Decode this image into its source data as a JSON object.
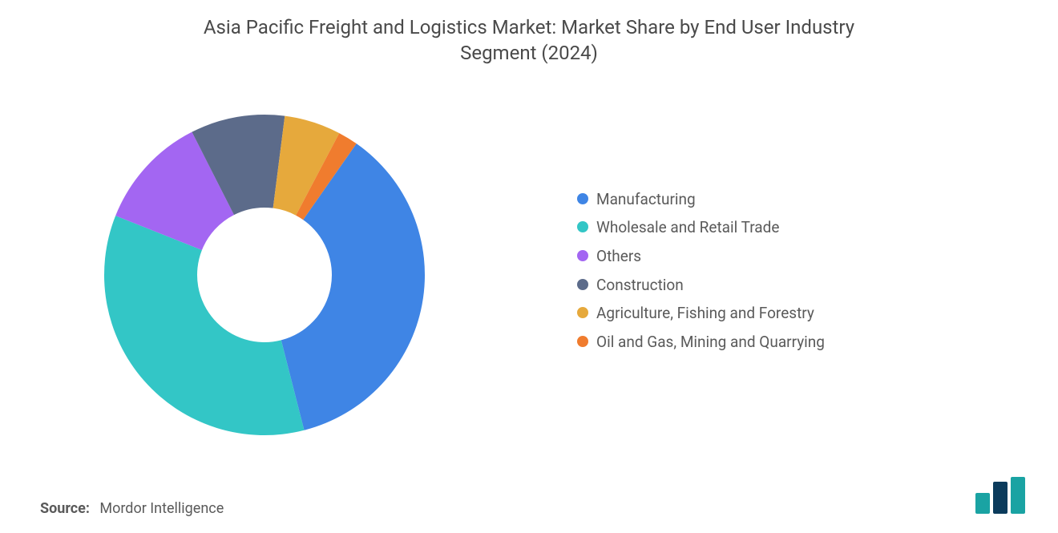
{
  "title_line1": "Asia Pacific Freight and Logistics Market: Market Share by End User Industry",
  "title_line2": "Segment (2024)",
  "chart": {
    "type": "donut",
    "start_angle_deg": -55,
    "inner_radius_ratio": 0.42,
    "background_color": "#ffffff",
    "label_fontsize": 19,
    "slices": [
      {
        "label": "Manufacturing",
        "value": 36.3,
        "color": "#3f85e5",
        "show_label": true,
        "label_text": "36.3%"
      },
      {
        "label": "Wholesale and Retail Trade",
        "value": 35.0,
        "color": "#33c6c6",
        "show_label": false
      },
      {
        "label": "Others",
        "value": 11.5,
        "color": "#a366f2",
        "show_label": false
      },
      {
        "label": "Construction",
        "value": 9.5,
        "color": "#5c6b8a",
        "show_label": false
      },
      {
        "label": "Agriculture, Fishing and Forest­ry",
        "value": 5.7,
        "color": "#e6a93c",
        "show_label": false
      },
      {
        "label": "Oil and Gas, Mining and Quarr­ying",
        "value": 2.0,
        "color": "#f07c2e",
        "show_label": false
      }
    ]
  },
  "legend_fontsize": 19,
  "source_label": "Source:",
  "source_value": "Mordor Intelligence",
  "logo_colors": {
    "bar1": "#1aa3a3",
    "bar2": "#0b3b5c",
    "bar3": "#1aa3a3"
  }
}
